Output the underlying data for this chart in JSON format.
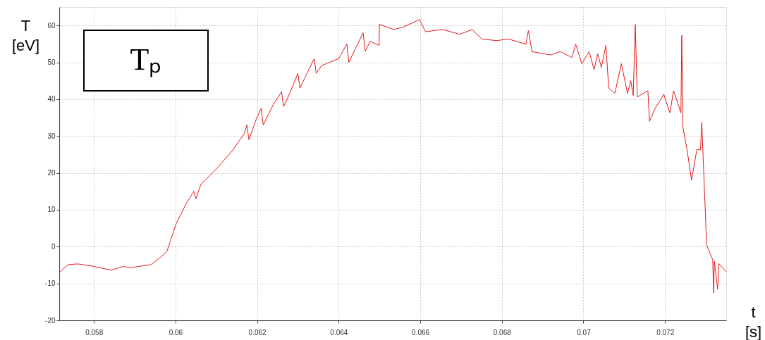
{
  "chart_data": {
    "type": "line",
    "xlabel": "t [s]",
    "ylabel": "T [eV]",
    "annotations": [
      "Tₚ"
    ],
    "xlim": [
      0.05715,
      0.0735
    ],
    "xticks": [
      0.058,
      0.06,
      0.062,
      0.064,
      0.066,
      0.068,
      0.07,
      0.072
    ],
    "ylim": [
      -20,
      65
    ],
    "yticks": [
      -20,
      -10,
      0,
      10,
      20,
      30,
      40,
      50,
      60
    ],
    "grid": true,
    "line_style": "solid",
    "marker": "none",
    "series": [
      {
        "color": "#e31a1c",
        "x": [
          0.05715,
          0.05737,
          0.0576,
          0.05796,
          0.05843,
          0.0587,
          0.0589,
          0.0594,
          0.05961,
          0.05979,
          0.05988,
          0.06002,
          0.06026,
          0.06045,
          0.0605,
          0.06062,
          0.06103,
          0.06139,
          0.06169,
          0.06175,
          0.0618,
          0.06198,
          0.0621,
          0.06215,
          0.0624,
          0.0626,
          0.06265,
          0.06281,
          0.063,
          0.06305,
          0.06317,
          0.0634,
          0.06345,
          0.06358,
          0.064,
          0.0642,
          0.06425,
          0.06441,
          0.0646,
          0.06465,
          0.06477,
          0.06499,
          0.065,
          0.06535,
          0.06559,
          0.06598,
          0.06613,
          0.06655,
          0.06697,
          0.06727,
          0.06751,
          0.06787,
          0.06817,
          0.06859,
          0.06865,
          0.06874,
          0.06919,
          0.06943,
          0.06972,
          0.06981,
          0.06996,
          0.07014,
          0.07026,
          0.07035,
          0.07044,
          0.07055,
          0.07062,
          0.07077,
          0.07093,
          0.07108,
          0.07116,
          0.07122,
          0.07127,
          0.07132,
          0.07158,
          0.07162,
          0.07176,
          0.07197,
          0.07212,
          0.07221,
          0.07239,
          0.07241,
          0.07244,
          0.07254,
          0.07265,
          0.07278,
          0.07287,
          0.0729,
          0.07302,
          0.07317,
          0.07319,
          0.07321,
          0.07329,
          0.07332,
          0.0735
        ],
        "values": [
          -7,
          -4.9,
          -4.7,
          -5.3,
          -6.4,
          -5.4,
          -5.7,
          -4.9,
          -3.1,
          -1.3,
          1.7,
          6.3,
          11.6,
          15,
          13,
          16.8,
          21.4,
          26,
          30.7,
          33,
          29,
          34.6,
          37.5,
          33,
          38.6,
          42,
          38,
          41.8,
          47,
          43,
          45.8,
          51,
          47,
          49.1,
          51,
          55,
          50,
          53.7,
          58,
          53,
          55.7,
          54.6,
          60.3,
          58.9,
          59.6,
          61.6,
          58.3,
          58.9,
          57.6,
          58.9,
          56.3,
          55.9,
          56.3,
          54.9,
          58.6,
          52.9,
          52,
          52.9,
          51.3,
          54.9,
          49.6,
          52.9,
          48,
          52.3,
          48.6,
          54.6,
          43,
          41.6,
          49.6,
          41.6,
          45,
          41,
          60.3,
          40.6,
          42.3,
          34,
          37.6,
          41.3,
          36.3,
          42.3,
          36.3,
          57.3,
          32.3,
          26.3,
          18,
          26.3,
          26.3,
          33.7,
          0.4,
          -3.6,
          -12.6,
          -4,
          -11.6,
          -4.6,
          -6.9
        ]
      }
    ]
  }
}
